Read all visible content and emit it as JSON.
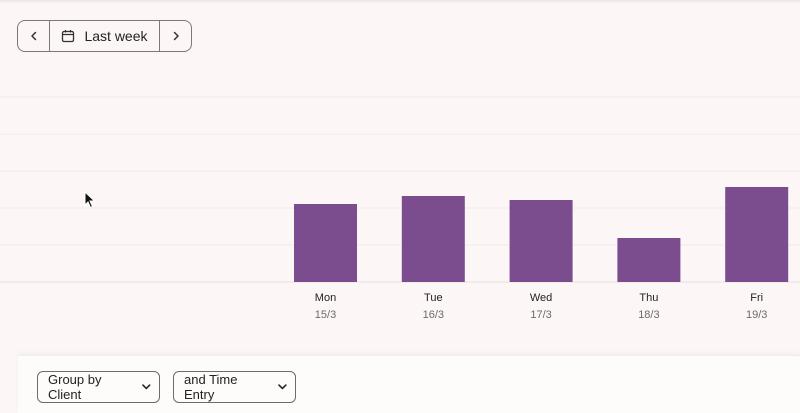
{
  "date_nav": {
    "prev_icon": "chevron-left-icon",
    "calendar_icon": "calendar-icon",
    "range_label": "Last week",
    "next_icon": "chevron-right-icon"
  },
  "chart_data": {
    "type": "bar",
    "categories": [
      "Mon",
      "Tue",
      "Wed",
      "Thu",
      "Fri"
    ],
    "dates": [
      "15/3",
      "16/3",
      "17/3",
      "18/3",
      "19/3"
    ],
    "values": [
      78,
      86,
      82,
      44,
      95
    ],
    "ylim": [
      0,
      185
    ],
    "grid": true,
    "bar_color": "#7b4d8f"
  },
  "filters": {
    "group_by_label": "Group by Client",
    "then_by_label": "and Time Entry",
    "dropdown_icon": "chevron-down-icon"
  }
}
